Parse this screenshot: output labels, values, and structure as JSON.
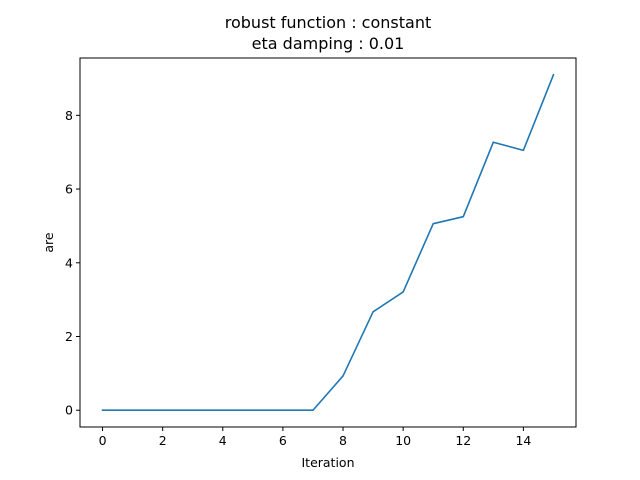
{
  "chart_data": {
    "type": "line",
    "title_lines": [
      "robust function  : constant",
      "eta damping : 0.01"
    ],
    "xlabel": "Iteration",
    "ylabel": "are",
    "xlim": [
      -0.75,
      15.75
    ],
    "ylim": [
      -0.455,
      9.555
    ],
    "xticks": [
      0,
      2,
      4,
      6,
      8,
      10,
      12,
      14
    ],
    "yticks": [
      0,
      2,
      4,
      6,
      8
    ],
    "grid": false,
    "legend": "none",
    "series": [
      {
        "color": "#1f77b4",
        "x": [
          0,
          1,
          2,
          3,
          4,
          5,
          6,
          7,
          8,
          9,
          10,
          11,
          12,
          13,
          14,
          15
        ],
        "y": [
          0,
          0,
          0,
          0,
          0,
          0,
          0,
          0,
          0.93,
          2.67,
          3.21,
          5.06,
          5.25,
          7.27,
          7.05,
          9.1
        ]
      }
    ]
  }
}
